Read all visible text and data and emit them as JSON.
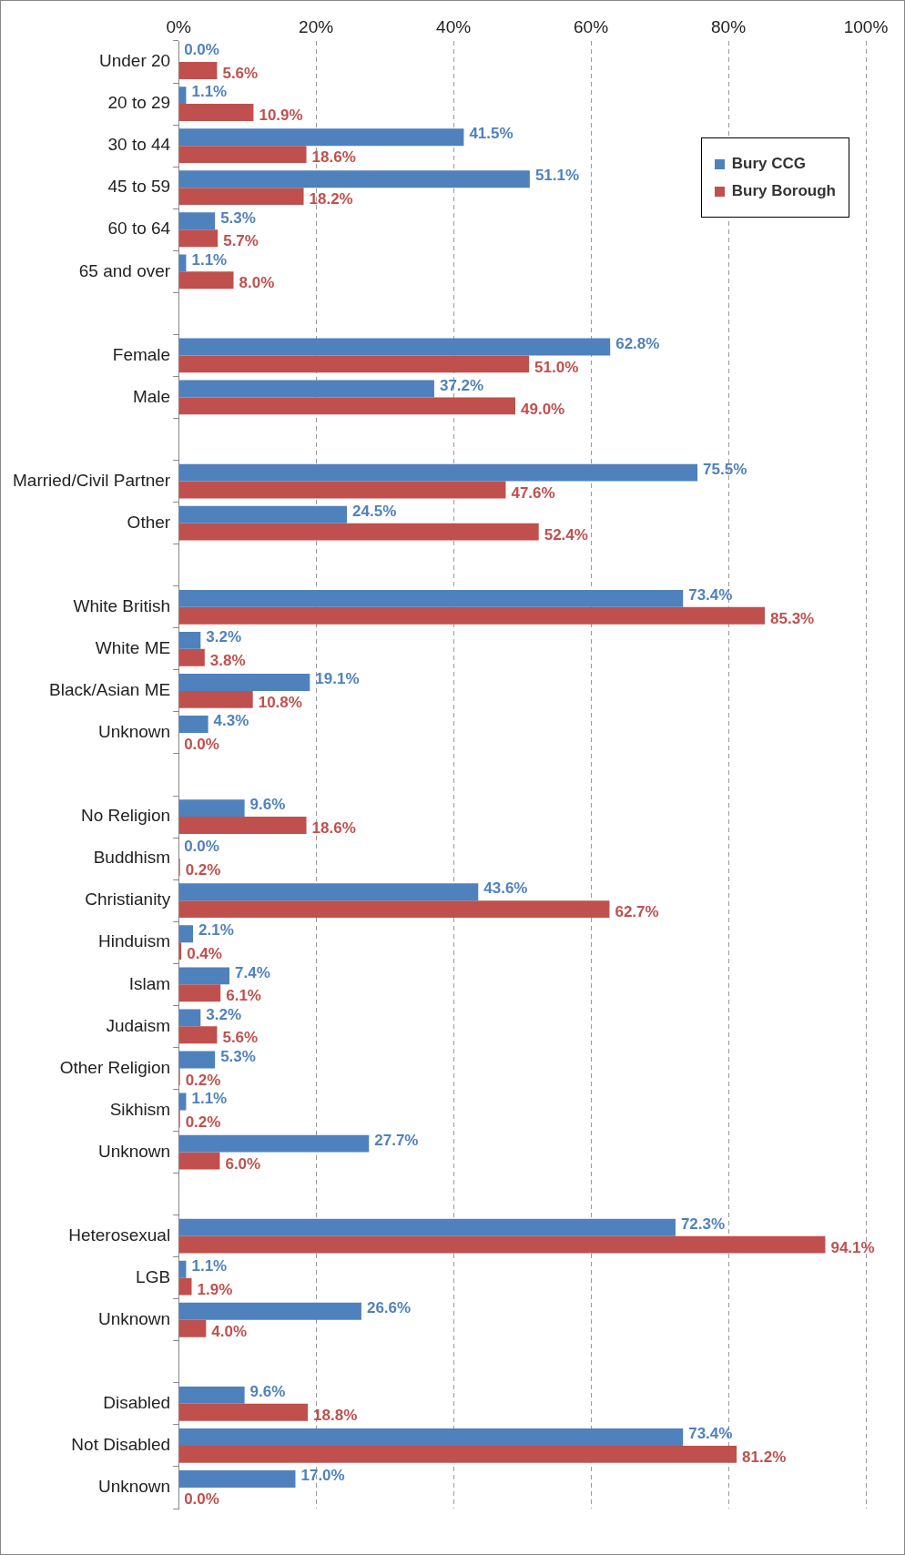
{
  "chart_data": {
    "type": "bar",
    "orientation": "horizontal",
    "categories": [
      "Under 20",
      "20 to 29",
      "30 to 44",
      "45 to 59",
      "60 to 64",
      "65 and over",
      null,
      "Female",
      "Male",
      null,
      "Married/Civil Partner",
      "Other",
      null,
      "White British",
      "White ME",
      "Black/Asian ME",
      "Unknown",
      null,
      "No Religion",
      "Buddhism",
      "Christianity",
      "Hinduism",
      "Islam",
      "Judaism",
      "Other Religion",
      "Sikhism",
      "Unknown",
      null,
      "Heterosexual",
      "LGB",
      "Unknown",
      null,
      "Disabled",
      "Not Disabled",
      "Unknown"
    ],
    "series": [
      {
        "name": "Bury CCG",
        "color": "#4f81bd",
        "values": [
          0,
          1.1,
          41.5,
          51.1,
          5.3,
          1.1,
          null,
          62.8,
          37.2,
          null,
          75.5,
          24.5,
          null,
          73.4,
          3.2,
          19.1,
          4.3,
          null,
          9.6,
          0,
          43.6,
          2.1,
          7.4,
          3.2,
          5.3,
          1.1,
          27.7,
          null,
          72.3,
          1.1,
          26.6,
          null,
          9.6,
          73.4,
          17.0
        ],
        "value_labels": [
          "0.0%",
          "1.1%",
          "41.5%",
          "51.1%",
          "5.3%",
          "1.1%",
          null,
          "62.8%",
          "37.2%",
          null,
          "75.5%",
          "24.5%",
          null,
          "73.4%",
          "3.2%",
          "19.1%",
          "4.3%",
          null,
          "9.6%",
          "0.0%",
          "43.6%",
          "2.1%",
          "7.4%",
          "3.2%",
          "5.3%",
          "1.1%",
          "27.7%",
          null,
          "72.3%",
          "1.1%",
          "26.6%",
          null,
          "9.6%",
          "73.4%",
          "17.0%"
        ]
      },
      {
        "name": "Bury Borough",
        "color": "#c0504d",
        "values": [
          5.6,
          10.9,
          18.6,
          18.2,
          5.7,
          8.0,
          null,
          51.0,
          49.0,
          null,
          47.6,
          52.4,
          null,
          85.3,
          3.8,
          10.8,
          0.0,
          null,
          18.6,
          0.2,
          62.7,
          0.4,
          6.1,
          5.6,
          0.2,
          0.2,
          6.0,
          null,
          94.1,
          1.9,
          4.0,
          null,
          18.8,
          81.2,
          0.0
        ],
        "value_labels": [
          "5.6%",
          "10.9%",
          "18.6%",
          "18.2%",
          "5.7%",
          "8.0%",
          null,
          "51.0%",
          "49.0%",
          null,
          "47.6%",
          "52.4%",
          null,
          "85.3%",
          "3.8%",
          "10.8%",
          "0.0%",
          null,
          "18.6%",
          "0.2%",
          "62.7%",
          "0.4%",
          "6.1%",
          "5.6%",
          "0.2%",
          "0.2%",
          "6.0%",
          null,
          "94.1%",
          "1.9%",
          "4.0%",
          null,
          "18.8%",
          "81.2%",
          "0.0%"
        ]
      }
    ],
    "xlim": [
      0,
      100
    ],
    "xticks": [
      {
        "value": 0,
        "label": "0%"
      },
      {
        "value": 20,
        "label": "20%"
      },
      {
        "value": 40,
        "label": "40%"
      },
      {
        "value": 60,
        "label": "60%"
      },
      {
        "value": 80,
        "label": "80%"
      },
      {
        "value": 100,
        "label": "100%"
      }
    ],
    "grid": "x",
    "line_style": "dashed",
    "legend": "top right"
  }
}
